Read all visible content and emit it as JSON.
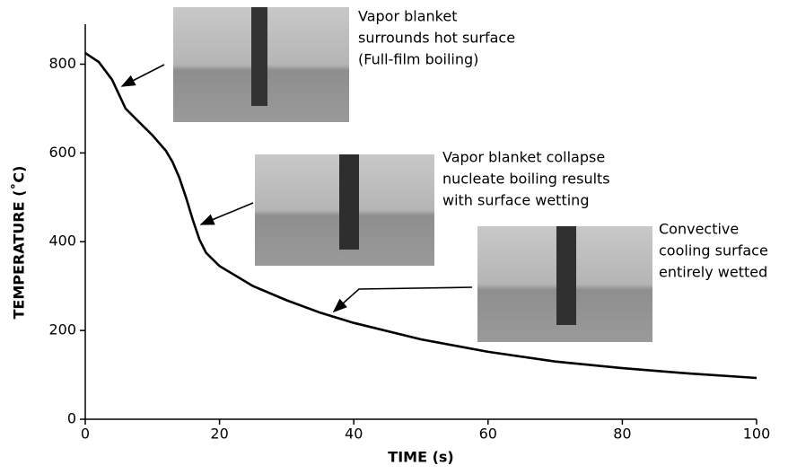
{
  "chart_data": {
    "type": "line",
    "xlabel": "TIME (s)",
    "ylabel": "TEMPERATURE (˚C)",
    "x": [
      0,
      2,
      4,
      6,
      8,
      10,
      12,
      13,
      14,
      15,
      16,
      17,
      18,
      20,
      25,
      30,
      35,
      40,
      50,
      60,
      70,
      80,
      90,
      100
    ],
    "values": [
      825,
      805,
      765,
      700,
      670,
      640,
      605,
      580,
      545,
      500,
      450,
      405,
      375,
      345,
      300,
      268,
      240,
      217,
      180,
      152,
      130,
      115,
      103,
      93
    ],
    "color": "#000000",
    "xlim": [
      0,
      100
    ],
    "xticks": [
      0,
      20,
      40,
      60,
      80,
      100
    ],
    "ylim": [
      0,
      890
    ],
    "yticks": [
      0,
      200,
      400,
      600,
      800
    ],
    "grid": false,
    "annotations": [
      {
        "lines": [
          "Vapor blanket",
          "surrounds hot surface",
          "(Full-film boiling)"
        ]
      },
      {
        "lines": [
          "Vapor blanket collapse",
          "nucleate boiling results",
          "with surface wetting"
        ]
      },
      {
        "lines": [
          "Convective",
          "cooling surface",
          "entirely wetted"
        ]
      }
    ]
  }
}
